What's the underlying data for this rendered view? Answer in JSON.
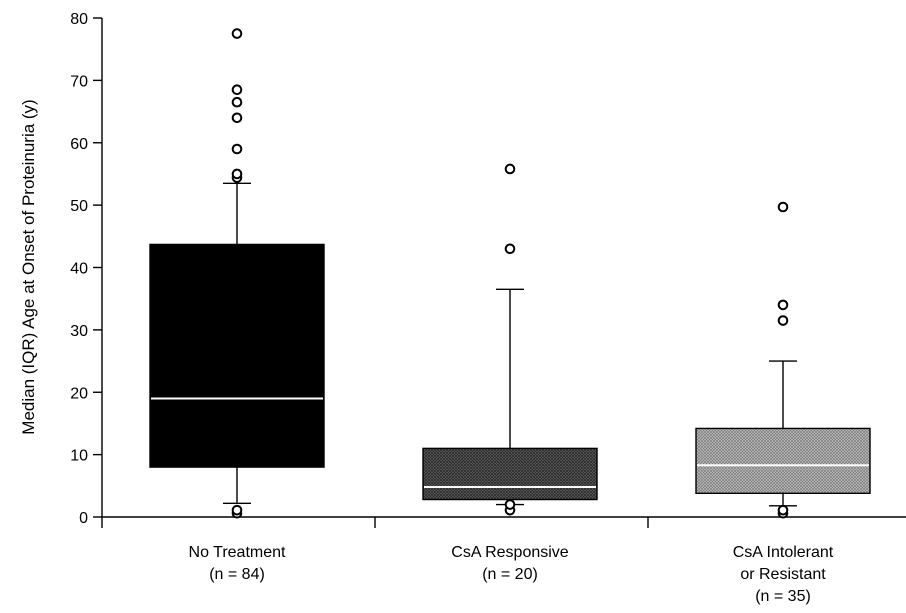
{
  "chart_data": {
    "type": "box",
    "title": "",
    "xlabel": "",
    "ylabel": "Median (IQR) Age at Onset of Proteinuria (y)",
    "ylim": [
      0,
      80
    ],
    "yticks": [
      0,
      10,
      20,
      30,
      40,
      50,
      60,
      70,
      80
    ],
    "grid": false,
    "categories": [
      {
        "label_lines": [
          "No Treatment",
          "(n = 84)"
        ]
      },
      {
        "label_lines": [
          "CsA Responsive",
          "(n = 20)"
        ]
      },
      {
        "label_lines": [
          "CsA Intolerant",
          "or Resistant",
          "(n = 35)"
        ]
      }
    ],
    "boxes": [
      {
        "whisker_low": 2.2,
        "q1": 8,
        "median": 19,
        "q3": 43.7,
        "whisker_high": 53.5,
        "outliers": [
          0.6,
          1.1,
          54.4,
          55,
          59,
          64,
          66.5,
          68.5,
          77.5
        ],
        "fill": "#000000",
        "fill_pattern": "solid",
        "median_color": "#ffffff"
      },
      {
        "whisker_low": 2,
        "q1": 2.8,
        "median": 4.8,
        "q3": 11,
        "whisker_high": 36.5,
        "outliers": [
          1.1,
          2,
          43,
          55.8
        ],
        "fill": "#555555",
        "fill_pattern": "dense-crosshatch",
        "median_color": "#ffffff"
      },
      {
        "whisker_low": 1.8,
        "q1": 3.8,
        "median": 8.3,
        "q3": 14.2,
        "whisker_high": 25,
        "outliers": [
          0.6,
          1.1,
          31.5,
          34,
          49.7
        ],
        "fill": "#aaaaaa",
        "fill_pattern": "light-crosshatch",
        "median_color": "#ffffff"
      }
    ]
  }
}
